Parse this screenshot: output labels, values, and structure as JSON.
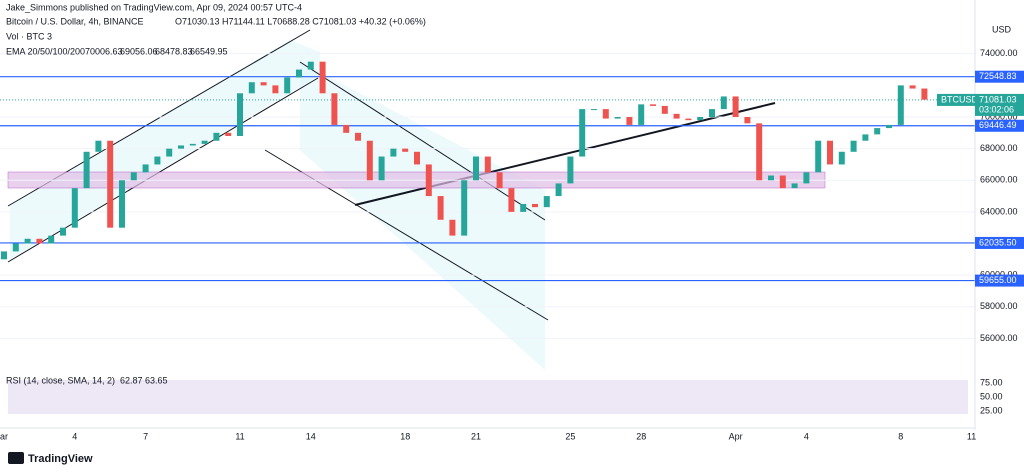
{
  "header": {
    "publisher": "Jake_Simmons published on TradingView.com, Apr 09, 2024 00:57 UTC-4",
    "symbol": "Bitcoin / U.S. Dollar, 4h, BINANCE",
    "ohlc": "O71030.13 H71144.11 L70688.28 C71081.03 +40.32 (+0.06%)",
    "volume": "Vol · BTC 3",
    "ema_label": "EMA 20/50/100/200",
    "ema_values": [
      {
        "text": "70006.63",
        "color": "#f23645"
      },
      {
        "text": "69056.06",
        "color": "#ff9800"
      },
      {
        "text": "68478.83",
        "color": "#26c6da"
      },
      {
        "text": "66549.95",
        "color": "#3f51b5"
      }
    ]
  },
  "chart": {
    "currency": "USD",
    "symbol_tag": "BTCUSD",
    "last_price": 71081.03,
    "last_price_label": "71081.03",
    "countdown": "03:02:06",
    "ylim": [
      54000,
      77400
    ],
    "yticks": [
      {
        "value": 74000,
        "label": "74000.00"
      },
      {
        "value": 70000,
        "label": "70000.00"
      },
      {
        "value": 68000,
        "label": "68000.00"
      },
      {
        "value": 66000,
        "label": "66000.00"
      },
      {
        "value": 64000,
        "label": "64000.00"
      },
      {
        "value": 60000,
        "label": "60000.00"
      },
      {
        "value": 58000,
        "label": "58000.00"
      },
      {
        "value": 56000,
        "label": "56000.00"
      }
    ],
    "levels": [
      {
        "value": 72548.83,
        "label": "72548.83"
      },
      {
        "value": 69446.49,
        "label": "69446.49"
      },
      {
        "value": 62035.5,
        "label": "62035.50"
      },
      {
        "value": 59655,
        "label": "59655.00"
      }
    ],
    "first_open": 61000,
    "closes": [
      61500,
      62000,
      62300,
      62000,
      62500,
      63000,
      65500,
      67800,
      68500,
      63000,
      66000,
      66500,
      67000,
      67500,
      68000,
      68200,
      68300,
      68500,
      69000,
      68800,
      71500,
      72200,
      72000,
      71500,
      72500,
      73000,
      73500,
      71500,
      69500,
      69000,
      68500,
      66000,
      67500,
      68000,
      67800,
      67000,
      65000,
      63500,
      62500,
      66000,
      67500,
      66500,
      65500,
      64000,
      64500,
      64300,
      65000,
      65800,
      67500,
      70500,
      70500,
      69900,
      70000,
      69500,
      70800,
      70700,
      70200,
      69900,
      69800,
      70000,
      70500,
      71300,
      70000,
      69600,
      66000,
      66300,
      65500,
      65800,
      66500,
      68500,
      67000,
      67800,
      68500,
      68900,
      69300,
      69500,
      72000,
      71800,
      71100
    ],
    "up_color": "#26a69a",
    "down_color": "#ef5350",
    "xticks": [
      {
        "value": 1,
        "label": "ar"
      },
      4,
      7,
      11,
      14,
      18,
      21,
      25,
      28,
      {
        "value": 32,
        "label": "Apr"
      },
      {
        "value": 35,
        "label": "4"
      },
      {
        "value": 39,
        "label": "8"
      },
      {
        "value": 42,
        "label": "11"
      }
    ]
  },
  "rsi": {
    "label": "RSI (14, close, SMA, 14, 2)",
    "value": "62.87",
    "sma": "63.65",
    "yticks": [
      {
        "value": 75,
        "label": "75.00"
      },
      {
        "value": 50,
        "label": "50.00"
      },
      {
        "value": 25,
        "label": "25.00"
      }
    ]
  },
  "footer": {
    "brand": "TradingView"
  }
}
